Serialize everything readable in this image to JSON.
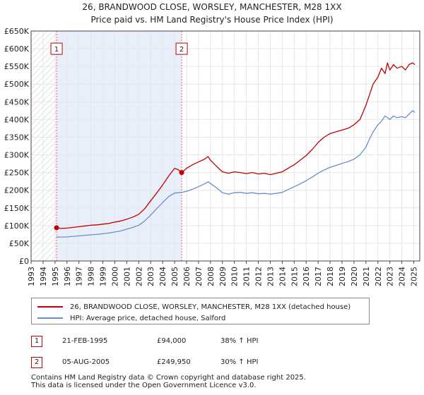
{
  "chart_data": {
    "type": "line",
    "title": "26, BRANDWOOD CLOSE, WORSLEY, MANCHESTER, M28 1XX",
    "subtitle": "Price paid vs. HM Land Registry's House Price Index (HPI)",
    "xlabel": "",
    "ylabel": "",
    "xlim": [
      1993,
      2025.5
    ],
    "ylim": [
      0,
      650000
    ],
    "x_ticks": [
      "1993",
      "1994",
      "1995",
      "1996",
      "1997",
      "1998",
      "1999",
      "2000",
      "2001",
      "2002",
      "2003",
      "2004",
      "2005",
      "2006",
      "2007",
      "2008",
      "2009",
      "2010",
      "2011",
      "2012",
      "2013",
      "2014",
      "2015",
      "2016",
      "2017",
      "2018",
      "2019",
      "2020",
      "2021",
      "2022",
      "2023",
      "2024",
      "2025"
    ],
    "y_ticks": [
      {
        "value": 0,
        "label": "£0"
      },
      {
        "value": 50000,
        "label": "£50K"
      },
      {
        "value": 100000,
        "label": "£100K"
      },
      {
        "value": 150000,
        "label": "£150K"
      },
      {
        "value": 200000,
        "label": "£200K"
      },
      {
        "value": 250000,
        "label": "£250K"
      },
      {
        "value": 300000,
        "label": "£300K"
      },
      {
        "value": 350000,
        "label": "£350K"
      },
      {
        "value": 400000,
        "label": "£400K"
      },
      {
        "value": 450000,
        "label": "£450K"
      },
      {
        "value": 500000,
        "label": "£500K"
      },
      {
        "value": 550000,
        "label": "£550K"
      },
      {
        "value": 600000,
        "label": "£600K"
      },
      {
        "value": 650000,
        "label": "£650K"
      }
    ],
    "series": [
      {
        "name": "26, BRANDWOOD CLOSE, WORSLEY, MANCHESTER, M28 1XX (detached house)",
        "color": "#c00000",
        "x": [
          1995.13,
          1995.5,
          1996,
          1996.5,
          1997,
          1997.5,
          1998,
          1998.5,
          1999,
          1999.5,
          2000,
          2000.5,
          2001,
          2001.5,
          2002,
          2002.5,
          2003,
          2003.5,
          2004,
          2004.5,
          2005,
          2005.3,
          2005.59,
          2006,
          2006.5,
          2007,
          2007.5,
          2007.8,
          2008,
          2008.5,
          2009,
          2009.5,
          2010,
          2010.5,
          2011,
          2011.5,
          2012,
          2012.5,
          2013,
          2013.5,
          2014,
          2014.5,
          2015,
          2015.5,
          2016,
          2016.5,
          2017,
          2017.5,
          2018,
          2018.5,
          2019,
          2019.5,
          2020,
          2020.5,
          2021,
          2021.3,
          2021.6,
          2022,
          2022.3,
          2022.6,
          2022.8,
          2023,
          2023.3,
          2023.6,
          2024,
          2024.3,
          2024.6,
          2024.9,
          2025.1
        ],
        "values": [
          94000,
          92000,
          93000,
          95000,
          97000,
          99000,
          101000,
          102000,
          104000,
          106000,
          110000,
          113000,
          118000,
          124000,
          132000,
          148000,
          170000,
          192000,
          215000,
          240000,
          262000,
          258000,
          249950,
          262000,
          272000,
          280000,
          288000,
          295000,
          285000,
          268000,
          252000,
          248000,
          252000,
          250000,
          247000,
          250000,
          246000,
          248000,
          244000,
          248000,
          252000,
          262000,
          272000,
          285000,
          298000,
          315000,
          335000,
          350000,
          360000,
          365000,
          370000,
          375000,
          385000,
          400000,
          440000,
          470000,
          500000,
          520000,
          545000,
          530000,
          560000,
          540000,
          555000,
          545000,
          550000,
          540000,
          555000,
          560000,
          555000
        ]
      },
      {
        "name": "HPI: Average price, detached house, Salford",
        "color": "#6a8fc8",
        "x": [
          1995.13,
          1995.5,
          1996,
          1996.5,
          1997,
          1997.5,
          1998,
          1998.5,
          1999,
          1999.5,
          2000,
          2000.5,
          2001,
          2001.5,
          2002,
          2002.5,
          2003,
          2003.5,
          2004,
          2004.5,
          2005,
          2005.59,
          2006,
          2006.5,
          2007,
          2007.5,
          2007.8,
          2008,
          2008.5,
          2009,
          2009.5,
          2010,
          2010.5,
          2011,
          2011.5,
          2012,
          2012.5,
          2013,
          2013.5,
          2014,
          2014.5,
          2015,
          2015.5,
          2016,
          2016.5,
          2017,
          2017.5,
          2018,
          2018.5,
          2019,
          2019.5,
          2020,
          2020.5,
          2021,
          2021.3,
          2021.6,
          2022,
          2022.3,
          2022.6,
          2023,
          2023.3,
          2023.6,
          2024,
          2024.3,
          2024.6,
          2024.9,
          2025.1
        ],
        "values": [
          68000,
          67500,
          68000,
          69500,
          71000,
          72500,
          74000,
          75000,
          77000,
          79000,
          82000,
          85000,
          90000,
          95000,
          101000,
          113000,
          130000,
          148000,
          165000,
          182000,
          192000,
          194000,
          197000,
          203000,
          210000,
          218000,
          224000,
          219000,
          207000,
          193000,
          189000,
          193000,
          194000,
          191000,
          193000,
          190000,
          191000,
          189000,
          191000,
          194000,
          202000,
          210000,
          218000,
          227000,
          237000,
          248000,
          257000,
          265000,
          270000,
          276000,
          281000,
          288000,
          300000,
          322000,
          345000,
          365000,
          385000,
          395000,
          410000,
          400000,
          410000,
          405000,
          408000,
          405000,
          415000,
          425000,
          420000
        ]
      }
    ],
    "sales": [
      {
        "marker": "1",
        "x": 1995.13,
        "value": 94000
      },
      {
        "marker": "2",
        "x": 2005.59,
        "value": 249950
      }
    ],
    "shaded_region": [
      1995.13,
      2005.59
    ]
  },
  "legend": {
    "property_label": "26, BRANDWOOD CLOSE, WORSLEY, MANCHESTER, M28 1XX (detached house)",
    "hpi_label": "HPI: Average price, detached house, Salford"
  },
  "sales_table": [
    {
      "marker": "1",
      "date": "21-FEB-1995",
      "price": "£94,000",
      "hpi": "38% ↑ HPI"
    },
    {
      "marker": "2",
      "date": "05-AUG-2005",
      "price": "£249,950",
      "hpi": "30% ↑ HPI"
    }
  ],
  "footer": {
    "line1": "Contains HM Land Registry data © Crown copyright and database right 2025.",
    "line2": "This data is licensed under the Open Government Licence v3.0."
  },
  "colors": {
    "property": "#c00000",
    "hpi": "#6a8fc8",
    "grid": "#e6e6e6",
    "shade": "#e8eefa",
    "vline": "#e06060"
  }
}
